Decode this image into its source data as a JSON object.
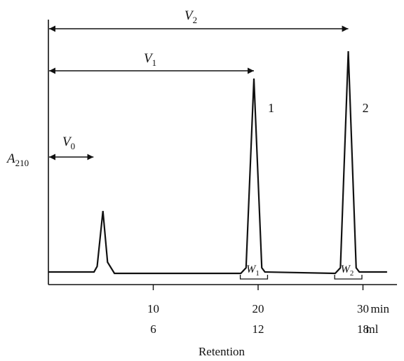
{
  "chart_data": {
    "type": "line",
    "title": "",
    "ylabel": {
      "main": "A",
      "sub": "210"
    },
    "xlabel": "Retention",
    "x_ticks_time": {
      "unit_label": "min",
      "ticks": [
        {
          "value": 10,
          "label": "10"
        },
        {
          "value": 20,
          "label": "20"
        },
        {
          "value": 30,
          "label": "30"
        }
      ]
    },
    "x_ticks_volume": {
      "unit_label": "ml",
      "ticks": [
        {
          "value": 10,
          "label": "6"
        },
        {
          "value": 20,
          "label": "12"
        },
        {
          "value": 30,
          "label": "18"
        }
      ]
    },
    "xlim": [
      0,
      33
    ],
    "ylim": [
      0,
      1
    ],
    "baseline": 0.06,
    "peaks": [
      {
        "label": "",
        "center": 5.2,
        "height": 0.35,
        "halfwidth": 0.55
      },
      {
        "label": "1",
        "center": 19.6,
        "height": 0.98,
        "halfwidth": 0.75
      },
      {
        "label": "2",
        "center": 28.6,
        "height": 1.11,
        "halfwidth": 0.75
      }
    ],
    "annotations": {
      "V0": {
        "main": "V",
        "sub": "0",
        "from": 0,
        "to": 4.3
      },
      "V1": {
        "main": "V",
        "sub": "1",
        "from": 0,
        "to": 19.6
      },
      "V2": {
        "main": "V",
        "sub": "2",
        "from": 0,
        "to": 28.6
      },
      "W1": {
        "main": "W",
        "sub": "1",
        "from": 18.3,
        "to": 20.9
      },
      "W2": {
        "main": "W",
        "sub": "2",
        "from": 27.3,
        "to": 29.9
      }
    }
  }
}
